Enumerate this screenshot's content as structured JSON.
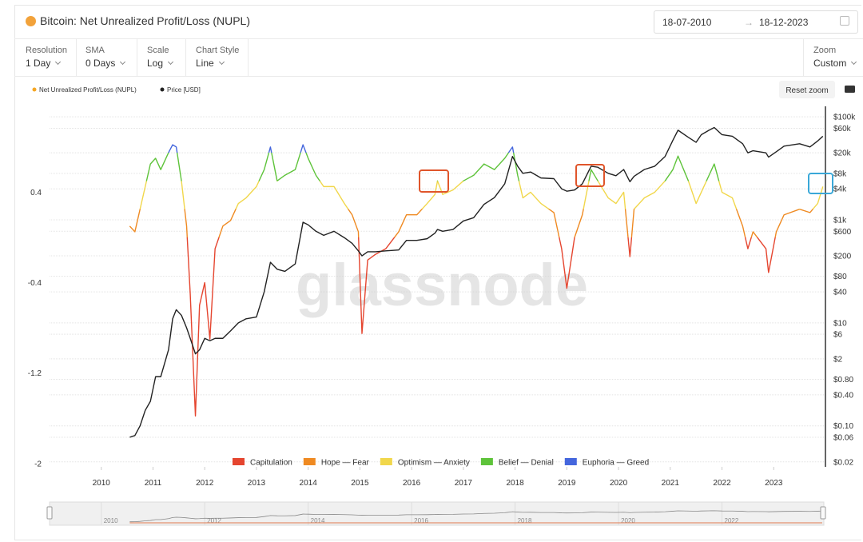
{
  "header": {
    "title": "Bitcoin: Net Unrealized Profit/Loss (NUPL)",
    "date_from": "18-07-2010",
    "date_to": "18-12-2023"
  },
  "toolbar": [
    {
      "label": "Resolution",
      "value": "1 Day"
    },
    {
      "label": "SMA",
      "value": "0 Days"
    },
    {
      "label": "Scale",
      "value": "Log"
    },
    {
      "label": "Chart Style",
      "value": "Line"
    }
  ],
  "zoom": {
    "label": "Zoom",
    "value": "Custom"
  },
  "reset_zoom": "Reset zoom",
  "chart_data": {
    "type": "line",
    "watermark": "glassnode",
    "x": [
      2010.55,
      2010.65,
      2010.75,
      2010.85,
      2010.95,
      2011.05,
      2011.15,
      2011.3,
      2011.38,
      2011.45,
      2011.55,
      2011.65,
      2011.72,
      2011.82,
      2011.9,
      2012.0,
      2012.1,
      2012.2,
      2012.35,
      2012.5,
      2012.65,
      2012.8,
      2013.0,
      2013.15,
      2013.27,
      2013.4,
      2013.55,
      2013.75,
      2013.9,
      2014.0,
      2014.15,
      2014.3,
      2014.5,
      2014.7,
      2014.85,
      2014.97,
      2015.04,
      2015.15,
      2015.3,
      2015.5,
      2015.75,
      2015.9,
      2016.1,
      2016.3,
      2016.45,
      2016.5,
      2016.6,
      2016.8,
      2017.0,
      2017.2,
      2017.4,
      2017.6,
      2017.8,
      2017.95,
      2018.05,
      2018.15,
      2018.3,
      2018.5,
      2018.75,
      2018.9,
      2019.0,
      2019.15,
      2019.3,
      2019.47,
      2019.6,
      2019.8,
      2019.95,
      2020.1,
      2020.22,
      2020.3,
      2020.5,
      2020.7,
      2020.9,
      2021.05,
      2021.15,
      2021.35,
      2021.5,
      2021.6,
      2021.75,
      2021.85,
      2022.0,
      2022.2,
      2022.4,
      2022.5,
      2022.6,
      2022.85,
      2022.9,
      2023.05,
      2023.2,
      2023.5,
      2023.7,
      2023.85,
      2023.95
    ],
    "series": [
      {
        "name": "Net Unrealized Profit/Loss (NUPL)",
        "color": "#f5a623",
        "values": [
          0.1,
          0.05,
          0.25,
          0.45,
          0.65,
          0.7,
          0.6,
          0.75,
          0.82,
          0.8,
          0.5,
          0.1,
          -0.5,
          -1.58,
          -0.6,
          -0.4,
          -0.9,
          -0.1,
          0.1,
          0.15,
          0.3,
          0.35,
          0.45,
          0.6,
          0.8,
          0.5,
          0.55,
          0.6,
          0.82,
          0.7,
          0.55,
          0.45,
          0.45,
          0.3,
          0.2,
          0.05,
          -0.85,
          -0.2,
          -0.15,
          -0.1,
          0.05,
          0.2,
          0.2,
          0.3,
          0.38,
          0.5,
          0.38,
          0.42,
          0.5,
          0.55,
          0.65,
          0.6,
          0.7,
          0.8,
          0.55,
          0.35,
          0.4,
          0.3,
          0.22,
          -0.1,
          -0.45,
          0,
          0.2,
          0.6,
          0.5,
          0.35,
          0.3,
          0.4,
          -0.17,
          0.25,
          0.35,
          0.4,
          0.5,
          0.6,
          0.72,
          0.5,
          0.3,
          0.4,
          0.55,
          0.65,
          0.4,
          0.35,
          0.1,
          -0.1,
          0.05,
          -0.1,
          -0.31,
          0.05,
          0.2,
          0.25,
          0.22,
          0.3,
          0.45
        ]
      },
      {
        "name": "Price [USD]",
        "color": "#222222",
        "axis": "y2",
        "values": [
          0.06,
          0.065,
          0.1,
          0.2,
          0.3,
          0.9,
          0.9,
          3,
          12,
          18,
          14,
          8,
          5,
          2.5,
          3,
          5,
          4.5,
          5,
          5,
          7,
          10,
          12,
          13,
          40,
          150,
          110,
          100,
          140,
          900,
          800,
          600,
          500,
          600,
          450,
          350,
          250,
          200,
          240,
          240,
          250,
          260,
          400,
          400,
          430,
          550,
          650,
          600,
          650,
          950,
          1100,
          2000,
          2700,
          5000,
          17000,
          11000,
          8000,
          8500,
          6500,
          6300,
          4000,
          3600,
          3800,
          5000,
          11000,
          10500,
          8000,
          7200,
          9500,
          5500,
          7000,
          9500,
          11000,
          17000,
          35000,
          55000,
          40000,
          32000,
          45000,
          55000,
          62000,
          45000,
          42000,
          30000,
          20000,
          22000,
          20000,
          16500,
          21000,
          27000,
          30000,
          26000,
          34000,
          42000
        ]
      }
    ],
    "zones": [
      {
        "name": "Capitulation",
        "color": "#e5452f",
        "to": 0
      },
      {
        "name": "Hope — Fear",
        "color": "#ef8a22",
        "to": 0.25
      },
      {
        "name": "Optimism — Anxiety",
        "color": "#f1d74b",
        "to": 0.5
      },
      {
        "name": "Belief — Denial",
        "color": "#5ec33a",
        "to": 0.75
      },
      {
        "name": "Euphoria — Greed",
        "color": "#4466dd"
      }
    ],
    "xlim": [
      2009,
      2024
    ],
    "xticks": [
      2010,
      2011,
      2012,
      2013,
      2014,
      2015,
      2016,
      2017,
      2018,
      2019,
      2020,
      2021,
      2022,
      2023
    ],
    "ylim": [
      -2.03,
      1.16
    ],
    "yticks": [
      0.4,
      -0.4,
      -1.2,
      -2
    ],
    "y2lim": [
      0.016,
      160000
    ],
    "y2scale": "log",
    "y2ticks": [
      {
        "value": 100000,
        "label": "$100k"
      },
      {
        "value": 60000,
        "label": "$60k"
      },
      {
        "value": 20000,
        "label": "$20k"
      },
      {
        "value": 8000,
        "label": "$8k"
      },
      {
        "value": 4000,
        "label": "$4k"
      },
      {
        "value": 1000,
        "label": "$1k"
      },
      {
        "value": 600,
        "label": "$600"
      },
      {
        "value": 200,
        "label": "$200"
      },
      {
        "value": 80,
        "label": "$80"
      },
      {
        "value": 40,
        "label": "$40"
      },
      {
        "value": 10,
        "label": "$10"
      },
      {
        "value": 6,
        "label": "$6"
      },
      {
        "value": 2,
        "label": "$2"
      },
      {
        "value": 0.8,
        "label": "$0.80"
      },
      {
        "value": 0.4,
        "label": "$0.40"
      },
      {
        "value": 0.1,
        "label": "$0.10"
      },
      {
        "value": 0.06,
        "label": "$0.06"
      },
      {
        "value": 0.02,
        "label": "$0.02"
      }
    ],
    "grid": true
  },
  "navigator": {
    "ticks": [
      2010,
      2012,
      2014,
      2016,
      2018,
      2020,
      2022
    ]
  }
}
